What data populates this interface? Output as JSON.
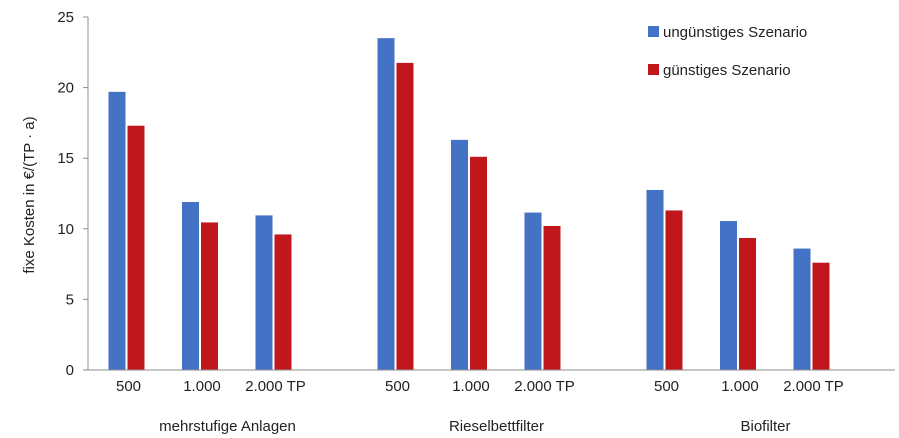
{
  "chart_data": {
    "type": "bar",
    "title": "",
    "ylabel": "fixe Kosten in €/(TP · a)",
    "ylim": [
      0,
      25
    ],
    "yticks": [
      0,
      5,
      10,
      15,
      20,
      25
    ],
    "grid": false,
    "legend_position": "top-right",
    "groups": [
      {
        "name": "mehrstufige Anlagen",
        "categories": [
          "500",
          "1.000",
          "2.000 TP"
        ]
      },
      {
        "name": "Rieselbettfilter",
        "categories": [
          "500",
          "1.000",
          "2.000 TP"
        ]
      },
      {
        "name": "Biofilter",
        "categories": [
          "500",
          "1.000",
          "2.000 TP"
        ]
      }
    ],
    "series": [
      {
        "name": "ungünstiges Szenario",
        "color": "#4472C4",
        "values": [
          19.7,
          11.9,
          10.95,
          23.5,
          16.3,
          11.15,
          12.75,
          10.55,
          8.6
        ]
      },
      {
        "name": "günstiges Szenario",
        "color": "#C0171D",
        "values": [
          17.3,
          10.45,
          9.6,
          21.75,
          15.1,
          10.2,
          11.3,
          9.35,
          7.6
        ]
      }
    ]
  }
}
